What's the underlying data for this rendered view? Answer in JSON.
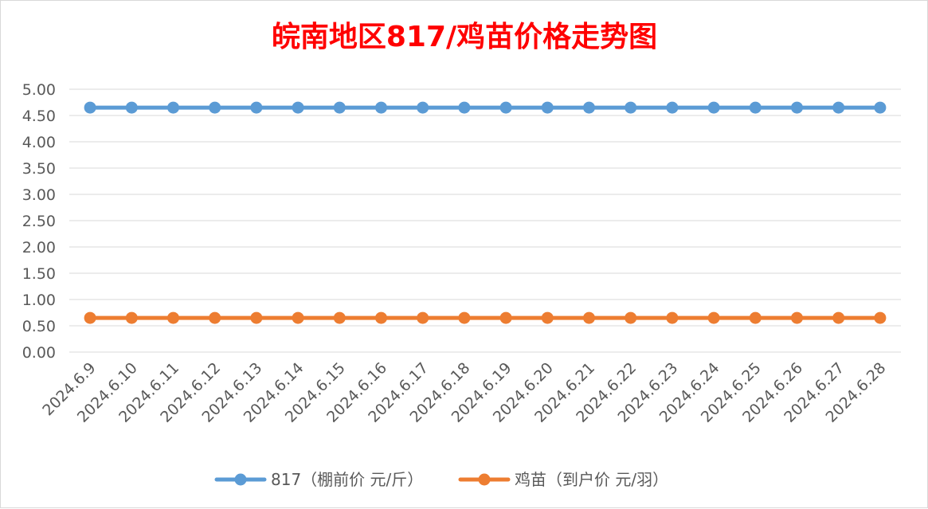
{
  "chart_data": {
    "type": "line",
    "title": "皖南地区817/鸡苗价格走势图",
    "title_color": "#ff0000",
    "xlabel": "",
    "ylabel": "",
    "ylim": [
      0,
      5
    ],
    "y_ticks": [
      "0.00",
      "0.50",
      "1.00",
      "1.50",
      "2.00",
      "2.50",
      "3.00",
      "3.50",
      "4.00",
      "4.50",
      "5.00"
    ],
    "grid": true,
    "legend_position": "bottom",
    "categories": [
      "2024.6.9",
      "2024.6.10",
      "2024.6.11",
      "2024.6.12",
      "2024.6.13",
      "2024.6.14",
      "2024.6.15",
      "2024.6.16",
      "2024.6.17",
      "2024.6.18",
      "2024.6.19",
      "2024.6.20",
      "2024.6.21",
      "2024.6.22",
      "2024.6.23",
      "2024.6.24",
      "2024.6.25",
      "2024.6.26",
      "2024.6.27",
      "2024.6.28"
    ],
    "series": [
      {
        "name": "817（棚前价 元/斤）",
        "color": "#5b9bd5",
        "values": [
          4.65,
          4.65,
          4.65,
          4.65,
          4.65,
          4.65,
          4.65,
          4.65,
          4.65,
          4.65,
          4.65,
          4.65,
          4.65,
          4.65,
          4.65,
          4.65,
          4.65,
          4.65,
          4.65,
          4.65
        ]
      },
      {
        "name": "鸡苗（到户价 元/羽）",
        "color": "#ed7d31",
        "values": [
          0.65,
          0.65,
          0.65,
          0.65,
          0.65,
          0.65,
          0.65,
          0.65,
          0.65,
          0.65,
          0.65,
          0.65,
          0.65,
          0.65,
          0.65,
          0.65,
          0.65,
          0.65,
          0.65,
          0.65
        ]
      }
    ]
  }
}
